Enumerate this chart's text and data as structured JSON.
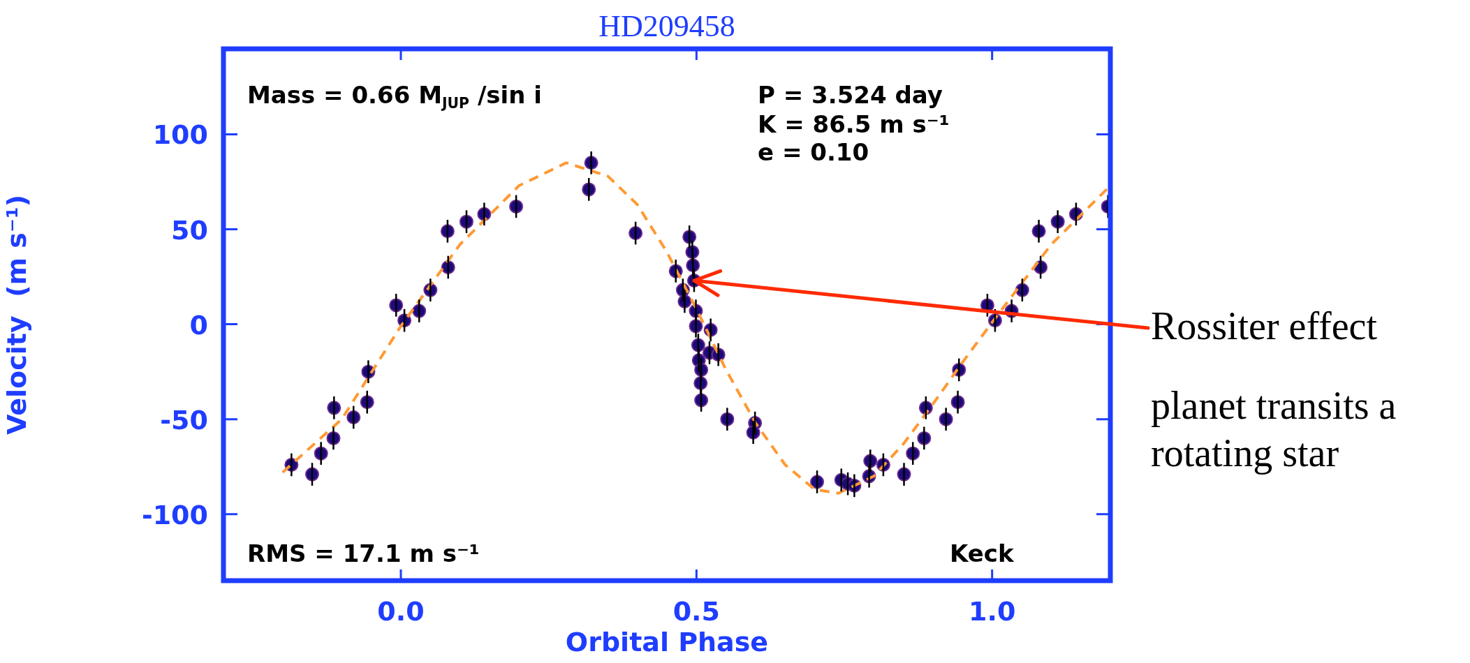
{
  "chart_data": {
    "type": "scatter",
    "title": "HD209458",
    "xlabel": "Orbital Phase",
    "ylabel": "Velocity  (m s⁻¹)",
    "xlim": [
      -0.3,
      1.2
    ],
    "xticks": [
      {
        "value": 0,
        "label": "0.0"
      },
      0.5,
      {
        "value": 1,
        "label": "1.0"
      }
    ],
    "ylim": [
      -135,
      145
    ],
    "yticks": [
      -100,
      -50,
      0,
      50,
      100
    ],
    "marker": "circle",
    "series": [
      {
        "type": "scatter",
        "color": "#1c0a7a",
        "x": [
          -0.185,
          -0.15,
          -0.135,
          -0.114,
          -0.113,
          -0.08,
          -0.057,
          -0.055,
          -0.008,
          0.006,
          0.031,
          0.05,
          0.08,
          0.079,
          0.111,
          0.141,
          0.195,
          0.318,
          0.322,
          0.397,
          0.465,
          0.488,
          0.493,
          0.494,
          0.496,
          0.477,
          0.48,
          0.499,
          0.499,
          0.524,
          0.503,
          0.522,
          0.537,
          0.504,
          0.508,
          0.507,
          0.508,
          0.552,
          0.599,
          0.596,
          0.704,
          0.745,
          0.756,
          0.767,
          0.794,
          0.792,
          0.816,
          0.851,
          0.866,
          0.885,
          0.888,
          0.922,
          0.942,
          0.944,
          0.992,
          1.005,
          1.033,
          1.051,
          1.082,
          1.079,
          1.111,
          1.142,
          1.196
        ],
        "values": [
          -74,
          -79,
          -68,
          -60,
          -44,
          -49,
          -41,
          -25,
          10,
          2,
          7,
          18,
          30,
          49,
          54,
          58,
          62,
          71,
          85,
          48,
          28,
          46,
          38,
          31,
          23,
          18,
          12,
          7,
          -1,
          -3,
          -11,
          -15,
          -16,
          -19,
          -24,
          -31,
          -40,
          -50,
          -52,
          -57,
          -83,
          -82,
          -84,
          -85,
          -72,
          -80,
          -74,
          -79,
          -68,
          -60,
          -44,
          -50,
          -41,
          -24,
          10,
          2,
          7,
          18,
          30,
          49,
          54,
          58,
          62
        ],
        "errors": [
          6,
          6,
          6,
          6,
          6,
          6,
          6,
          6,
          6,
          6,
          6,
          6,
          6,
          6,
          6,
          6,
          6,
          6,
          6,
          6,
          6,
          6,
          6,
          6,
          6,
          6,
          6,
          6,
          6,
          6,
          6,
          6,
          6,
          6,
          6,
          6,
          6,
          6,
          6,
          6,
          6,
          6,
          6,
          6,
          6,
          6,
          6,
          6,
          6,
          6,
          6,
          6,
          6,
          6,
          6,
          6,
          6,
          6,
          6,
          6,
          6,
          6,
          6
        ]
      },
      {
        "type": "line",
        "color": "#ff9933",
        "line_style": "dashed",
        "marker": "none",
        "x": [
          -0.2,
          -0.1,
          0.0,
          0.1,
          0.2,
          0.28,
          0.35,
          0.4,
          0.45,
          0.5,
          0.55,
          0.6,
          0.65,
          0.7,
          0.74,
          0.8,
          0.85,
          0.9,
          0.95,
          1.0,
          1.1,
          1.2
        ],
        "values": [
          -78,
          -50,
          -1,
          42,
          73,
          85,
          78,
          63,
          38,
          8,
          -24,
          -52,
          -74,
          -87,
          -89,
          -80,
          -63,
          -42,
          -20,
          1,
          42,
          73
        ]
      }
    ],
    "annotations": [
      "Mass = 0.66 M$_{JUP}$ /sin i",
      "P = 3.524 day",
      "K = 86.5 m s⁻¹",
      "e = 0.10",
      "RMS = 17.1 m s⁻¹",
      "Keck",
      {
        "text": "Rossiter effect",
        "x": 0.496,
        "y": 23
      },
      "planet transits a rotating star"
    ]
  }
}
